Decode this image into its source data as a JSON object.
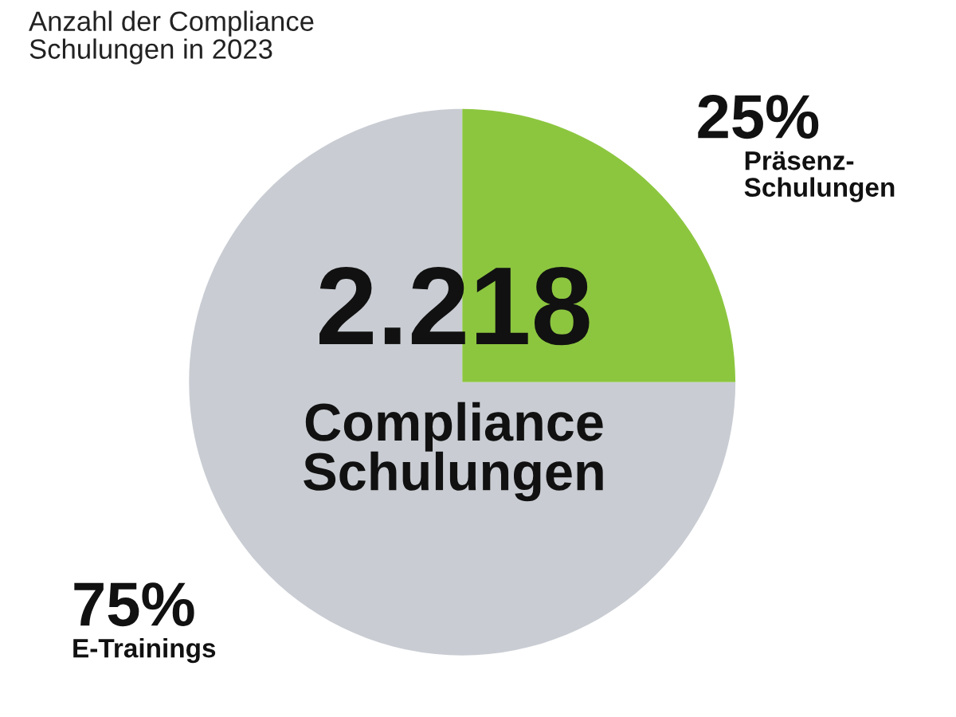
{
  "chart_data": {
    "type": "pie",
    "title": "Anzahl der Compliance\nSchulungen in 2023",
    "categories": [
      "Präsenz-\nSchulungen",
      "E-Trainings"
    ],
    "values": [
      25,
      75
    ],
    "value_labels": [
      "25%",
      "75%"
    ],
    "colors": [
      "#8cc63f",
      "#c9cdd3"
    ],
    "annotations": [
      "2.218",
      "Compliance\nSchulungen"
    ]
  }
}
